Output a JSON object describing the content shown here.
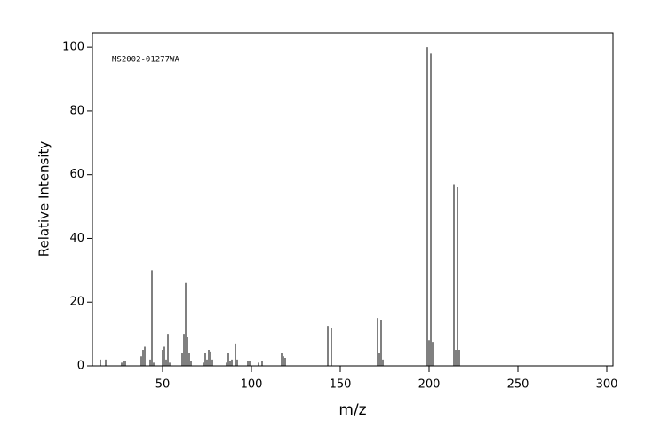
{
  "chart_data": {
    "type": "stick",
    "annotation": "MS2002-01277WA",
    "xlabel": "m/z",
    "ylabel": "Relative Intensity",
    "x": [
      15,
      18,
      27,
      28,
      29,
      38,
      39,
      40,
      43,
      44,
      45,
      50,
      51,
      52,
      53,
      54,
      61,
      62,
      63,
      64,
      65,
      66,
      73,
      74,
      75,
      76,
      77,
      78,
      86,
      87,
      88,
      89,
      91,
      92,
      98,
      99,
      104,
      106,
      117,
      118,
      119,
      143,
      145,
      171,
      172,
      173,
      174,
      199,
      200,
      201,
      202,
      214,
      215,
      216,
      217
    ],
    "values": [
      2,
      2,
      1,
      1.5,
      1.5,
      3,
      5,
      6,
      2,
      30,
      1,
      5,
      6,
      2,
      10,
      1,
      4,
      10,
      26,
      9,
      4,
      1.5,
      1,
      4,
      2,
      5,
      4.5,
      2,
      1,
      4,
      1.5,
      2,
      7,
      2,
      1.5,
      1.5,
      1,
      1.5,
      4,
      3,
      2.5,
      12.5,
      12,
      15,
      4,
      14.5,
      2,
      100,
      8,
      98,
      7.5,
      57,
      5,
      56,
      5
    ],
    "color": "#000000",
    "xlim": [
      10.5,
      303.5
    ],
    "ylim": [
      0,
      104.5
    ],
    "xticks": [
      50,
      100,
      150,
      200,
      250,
      300
    ],
    "yticks": [
      0,
      20,
      40,
      60,
      80,
      100
    ]
  }
}
